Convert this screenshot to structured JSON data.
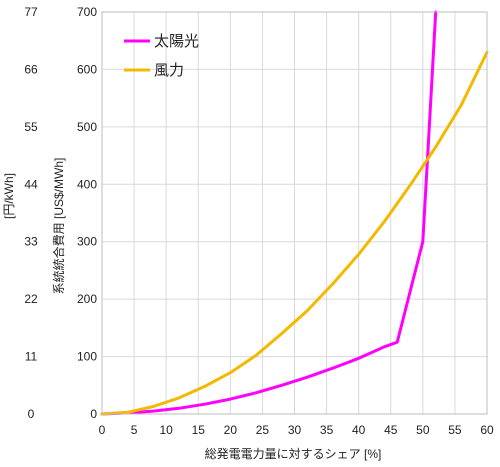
{
  "chart_data": {
    "type": "line",
    "xlabel": "総発電電力量に対するシェア [%]",
    "ylabel": "系統統合費用 [US$/MWh]",
    "y2label": "[円/kWh]",
    "xlim": [
      0,
      60
    ],
    "ylim": [
      0,
      700
    ],
    "x_ticks": [
      "0",
      "5",
      "10",
      "15",
      "20",
      "25",
      "30",
      "35",
      "40",
      "45",
      "50",
      "55",
      "60"
    ],
    "y_ticks": [
      "0",
      "100",
      "200",
      "300",
      "400",
      "500",
      "600",
      "700"
    ],
    "y2_ticks": [
      "0",
      "11",
      "22",
      "33",
      "44",
      "55",
      "66",
      "77"
    ],
    "grid": true,
    "legend_position": "top-left",
    "series": [
      {
        "name": "太陽光",
        "color": "#ff00ff",
        "x": [
          0,
          4,
          8,
          12,
          16,
          20,
          24,
          28,
          32,
          36,
          40,
          44,
          46,
          50,
          51,
          52
        ],
        "y": [
          0,
          2,
          5,
          10,
          17,
          26,
          37,
          50,
          64,
          80,
          97,
          117,
          125,
          300,
          500,
          700
        ]
      },
      {
        "name": "風力",
        "color": "#f5b800",
        "x": [
          0,
          4,
          8,
          12,
          16,
          20,
          24,
          28,
          32,
          36,
          40,
          44,
          48,
          52,
          56,
          60
        ],
        "y": [
          0,
          3,
          13,
          28,
          48,
          72,
          102,
          140,
          180,
          227,
          278,
          335,
          398,
          465,
          538,
          630
        ]
      }
    ]
  }
}
